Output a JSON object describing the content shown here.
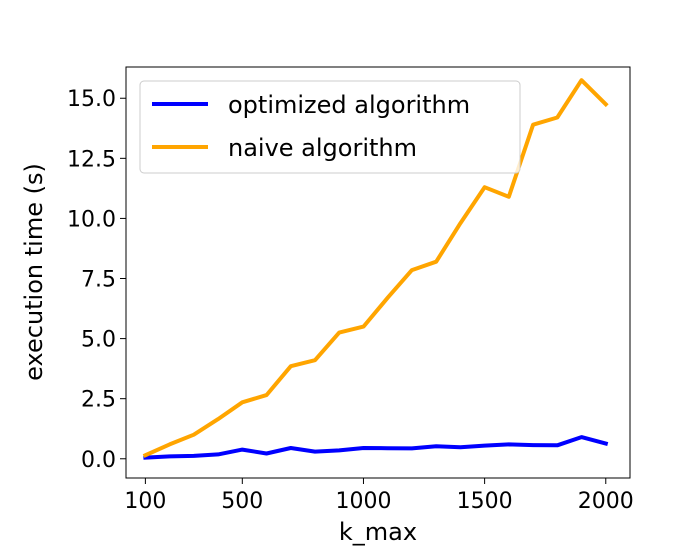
{
  "chart_data": {
    "type": "line",
    "xlabel": "k_max",
    "ylabel": "execution time (s)",
    "xlim": [
      20,
      2100
    ],
    "ylim": [
      -0.8,
      16.3
    ],
    "xticks": [
      100,
      500,
      1000,
      1500,
      2000
    ],
    "yticks": [
      0.0,
      2.5,
      5.0,
      7.5,
      10.0,
      12.5,
      15.0
    ],
    "xtick_labels": [
      "100",
      "500",
      "1000",
      "1500",
      "2000"
    ],
    "ytick_labels": [
      "0.0",
      "2.5",
      "5.0",
      "7.5",
      "10.0",
      "12.5",
      "15.0"
    ],
    "grid": false,
    "legend_position": "top-left",
    "x": [
      100,
      200,
      300,
      400,
      500,
      600,
      700,
      800,
      900,
      1000,
      1100,
      1200,
      1300,
      1400,
      1500,
      1600,
      1700,
      1800,
      1900,
      2000
    ],
    "series": [
      {
        "name": "optimized algorithm",
        "color": "#0000ff",
        "values": [
          0.05,
          0.1,
          0.12,
          0.18,
          0.38,
          0.22,
          0.45,
          0.3,
          0.35,
          0.45,
          0.44,
          0.43,
          0.52,
          0.48,
          0.55,
          0.6,
          0.57,
          0.56,
          0.9,
          0.63
        ]
      },
      {
        "name": "naive algorithm",
        "color": "#ffa500",
        "values": [
          0.15,
          0.6,
          1.0,
          1.65,
          2.35,
          2.65,
          3.85,
          4.1,
          5.25,
          5.5,
          6.7,
          7.85,
          8.2,
          9.8,
          11.3,
          10.9,
          13.9,
          14.2,
          15.75,
          14.75
        ]
      }
    ]
  }
}
